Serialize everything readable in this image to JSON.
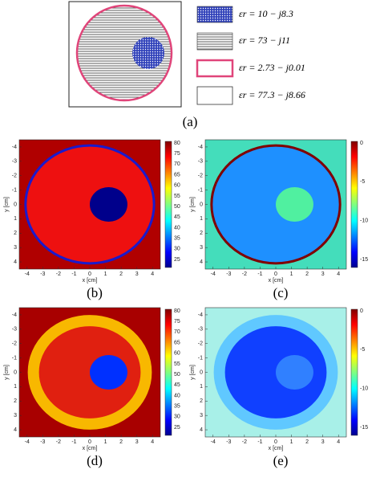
{
  "panel_a": {
    "legend": [
      "εr = 10 − j8.3",
      "εr = 73 − j11",
      "εr = 2.73 − j0.01",
      "εr = 77.3 − j8.66"
    ],
    "caption": "(a)"
  },
  "panels": [
    {
      "caption": "(b)",
      "x_label": "x [cm]",
      "y_label": "y [cm]",
      "x_ticks": [
        -4,
        -3,
        -2,
        -1,
        0,
        1,
        2,
        3,
        4
      ],
      "y_ticks": [
        -4,
        -3,
        -2,
        -1,
        0,
        1,
        2,
        3,
        4
      ],
      "colorbar_ticks": [
        80,
        75,
        70,
        65,
        60,
        55,
        50,
        45,
        40,
        35,
        30,
        25
      ]
    },
    {
      "caption": "(c)",
      "x_label": "x [cm]",
      "y_label": "y [cm]",
      "x_ticks": [
        -4,
        -3,
        -2,
        -1,
        0,
        1,
        2,
        3,
        4
      ],
      "y_ticks": [
        -4,
        -3,
        -2,
        -1,
        0,
        1,
        2,
        3,
        4
      ],
      "colorbar_ticks": [
        0,
        -5,
        -10,
        -15
      ]
    },
    {
      "caption": "(d)",
      "x_label": "x [cm]",
      "y_label": "y [cm]",
      "x_ticks": [
        -4,
        -3,
        -2,
        -1,
        0,
        1,
        2,
        3,
        4
      ],
      "y_ticks": [
        -4,
        -3,
        -2,
        -1,
        0,
        1,
        2,
        3,
        4
      ],
      "colorbar_ticks": [
        80,
        75,
        70,
        65,
        60,
        55,
        50,
        45,
        40,
        35,
        30,
        25
      ]
    },
    {
      "caption": "(e)",
      "x_label": "x [cm]",
      "y_label": "y [cm]",
      "x_ticks": [
        -4,
        -3,
        -2,
        -1,
        0,
        1,
        2,
        3,
        4
      ],
      "y_ticks": [
        -4,
        -3,
        -2,
        -1,
        0,
        1,
        2,
        3,
        4
      ],
      "colorbar_ticks": [
        0,
        -5,
        -10,
        -15
      ]
    }
  ]
}
